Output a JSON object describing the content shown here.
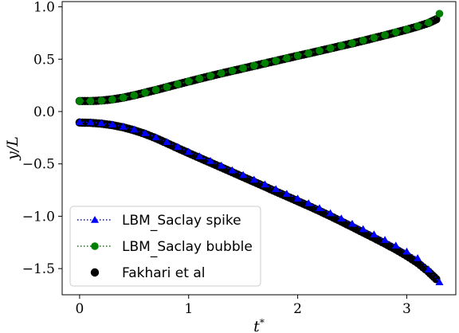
{
  "chart_data": {
    "type": "scatter",
    "xlabel": "t*",
    "ylabel": "y/L",
    "xlim": [
      -0.16,
      3.45
    ],
    "ylim": [
      -1.75,
      1.05
    ],
    "xticks": [
      0,
      1,
      2,
      3
    ],
    "yticks": [
      1.0,
      0.5,
      0.0,
      -0.5,
      -1.0,
      -1.5
    ],
    "xtick_labels": [
      "0",
      "1",
      "2",
      "3"
    ],
    "ytick_labels": [
      "1.0",
      "0.5",
      "0.0",
      "−0.5",
      "−1.0",
      "−1.5"
    ],
    "grid": false,
    "legend_position": "lower-left",
    "colors": {
      "spike": "#0000ff",
      "bubble": "#008000",
      "reference": "#000000"
    },
    "series": [
      {
        "name": "LBM_Saclay spike",
        "style": "dotted-line-triangle",
        "x": [
          0.0,
          0.1,
          0.2,
          0.3,
          0.4,
          0.5,
          0.6,
          0.7,
          0.8,
          0.9,
          1.0,
          1.1,
          1.2,
          1.3,
          1.4,
          1.5,
          1.6,
          1.7,
          1.8,
          1.9,
          2.0,
          2.1,
          2.2,
          2.3,
          2.4,
          2.5,
          2.6,
          2.7,
          2.8,
          2.9,
          3.0,
          3.1,
          3.2,
          3.3
        ],
        "y": [
          -0.1,
          -0.103,
          -0.11,
          -0.124,
          -0.145,
          -0.172,
          -0.206,
          -0.246,
          -0.291,
          -0.338,
          -0.384,
          -0.428,
          -0.472,
          -0.516,
          -0.561,
          -0.606,
          -0.651,
          -0.696,
          -0.741,
          -0.786,
          -0.831,
          -0.876,
          -0.923,
          -0.971,
          -1.021,
          -1.072,
          -1.123,
          -1.174,
          -1.226,
          -1.28,
          -1.337,
          -1.4,
          -1.508,
          -1.63
        ]
      },
      {
        "name": "LBM_Saclay bubble",
        "style": "dotted-line-circle",
        "x": [
          0.0,
          0.1,
          0.2,
          0.3,
          0.4,
          0.5,
          0.6,
          0.7,
          0.8,
          0.9,
          1.0,
          1.1,
          1.2,
          1.3,
          1.4,
          1.5,
          1.6,
          1.7,
          1.8,
          1.9,
          2.0,
          2.1,
          2.2,
          2.3,
          2.4,
          2.5,
          2.6,
          2.7,
          2.8,
          2.9,
          3.0,
          3.1,
          3.2,
          3.3
        ],
        "y": [
          0.1,
          0.1,
          0.104,
          0.115,
          0.133,
          0.155,
          0.18,
          0.207,
          0.234,
          0.262,
          0.289,
          0.315,
          0.341,
          0.366,
          0.39,
          0.414,
          0.438,
          0.462,
          0.486,
          0.51,
          0.534,
          0.557,
          0.581,
          0.605,
          0.629,
          0.653,
          0.679,
          0.705,
          0.731,
          0.758,
          0.785,
          0.815,
          0.85,
          0.935
        ]
      },
      {
        "name": "Fakhari et al",
        "style": "scatter-filled-circle",
        "x": [
          0.0,
          0.1,
          0.2,
          0.3,
          0.4,
          0.5,
          0.6,
          0.7,
          0.8,
          0.9,
          1.0,
          1.1,
          1.2,
          1.3,
          1.4,
          1.5,
          1.6,
          1.7,
          1.8,
          1.9,
          2.0,
          2.1,
          2.2,
          2.3,
          2.4,
          2.5,
          2.6,
          2.7,
          2.8,
          2.9,
          3.0,
          3.1,
          3.2,
          3.27
        ],
        "y": [
          -0.105,
          -0.108,
          -0.116,
          -0.13,
          -0.151,
          -0.179,
          -0.214,
          -0.255,
          -0.302,
          -0.35,
          -0.397,
          -0.443,
          -0.488,
          -0.534,
          -0.58,
          -0.626,
          -0.672,
          -0.718,
          -0.764,
          -0.81,
          -0.856,
          -0.902,
          -0.95,
          -0.999,
          -1.05,
          -1.102,
          -1.155,
          -1.207,
          -1.261,
          -1.317,
          -1.378,
          -1.446,
          -1.53,
          -1.6
        ]
      },
      {
        "name": "",
        "style": "scatter-filled-circle",
        "x": [
          0.0,
          0.1,
          0.2,
          0.3,
          0.4,
          0.5,
          0.6,
          0.7,
          0.8,
          0.9,
          1.0,
          1.1,
          1.2,
          1.3,
          1.4,
          1.5,
          1.6,
          1.7,
          1.8,
          1.9,
          2.0,
          2.1,
          2.2,
          2.3,
          2.4,
          2.5,
          2.6,
          2.7,
          2.8,
          2.9,
          3.0,
          3.1,
          3.2,
          3.27
        ],
        "y": [
          0.1,
          0.1,
          0.105,
          0.116,
          0.133,
          0.155,
          0.18,
          0.206,
          0.233,
          0.26,
          0.287,
          0.313,
          0.339,
          0.364,
          0.388,
          0.412,
          0.436,
          0.46,
          0.484,
          0.508,
          0.532,
          0.555,
          0.579,
          0.603,
          0.627,
          0.651,
          0.676,
          0.702,
          0.728,
          0.755,
          0.782,
          0.812,
          0.846,
          0.88
        ]
      }
    ],
    "legend": [
      {
        "label": "LBM_Saclay spike",
        "series": 0
      },
      {
        "label": "LBM_Saclay bubble",
        "series": 1
      },
      {
        "label": "Fakhari et al",
        "series": 2
      }
    ]
  }
}
